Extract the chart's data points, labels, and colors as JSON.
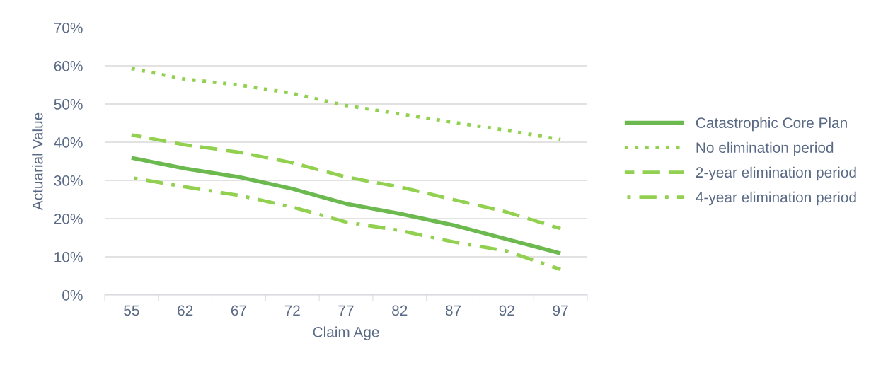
{
  "chart_data": {
    "type": "line",
    "xlabel": "Claim Age",
    "ylabel": "Actuarial Value",
    "categories": [
      "55",
      "62",
      "67",
      "72",
      "77",
      "82",
      "87",
      "92",
      "97"
    ],
    "series": [
      {
        "name": "Catastrophic Core Plan",
        "color": "#6cb94f",
        "line_style": "solid",
        "values": [
          35.9,
          33.1,
          30.9,
          27.8,
          23.9,
          21.3,
          18.3,
          14.6,
          10.9
        ]
      },
      {
        "name": "No elimination period",
        "color": "#92d050",
        "line_style": "dotted",
        "values": [
          59.3,
          56.5,
          55.0,
          52.8,
          49.6,
          47.4,
          45.2,
          43.1,
          40.7
        ]
      },
      {
        "name": "2-year elimination period",
        "color": "#92d050",
        "line_style": "dashed",
        "values": [
          41.9,
          39.3,
          37.4,
          34.6,
          30.9,
          28.3,
          25.0,
          21.7,
          17.4
        ]
      },
      {
        "name": "4-year elimination period",
        "color": "#92d050",
        "line_style": "dashdot",
        "values": [
          30.7,
          28.3,
          26.1,
          23.0,
          19.1,
          16.9,
          13.9,
          11.5,
          6.7
        ]
      }
    ],
    "ylim": [
      0,
      70
    ],
    "yticks": [
      {
        "value": 0,
        "label": "0%"
      },
      {
        "value": 10,
        "label": "10%"
      },
      {
        "value": 20,
        "label": "20%"
      },
      {
        "value": 30,
        "label": "30%"
      },
      {
        "value": 40,
        "label": "40%"
      },
      {
        "value": 50,
        "label": "50%"
      },
      {
        "value": 60,
        "label": "60%"
      },
      {
        "value": 70,
        "label": "70%"
      }
    ],
    "grid": "y",
    "legend": "right",
    "marker": "none"
  }
}
